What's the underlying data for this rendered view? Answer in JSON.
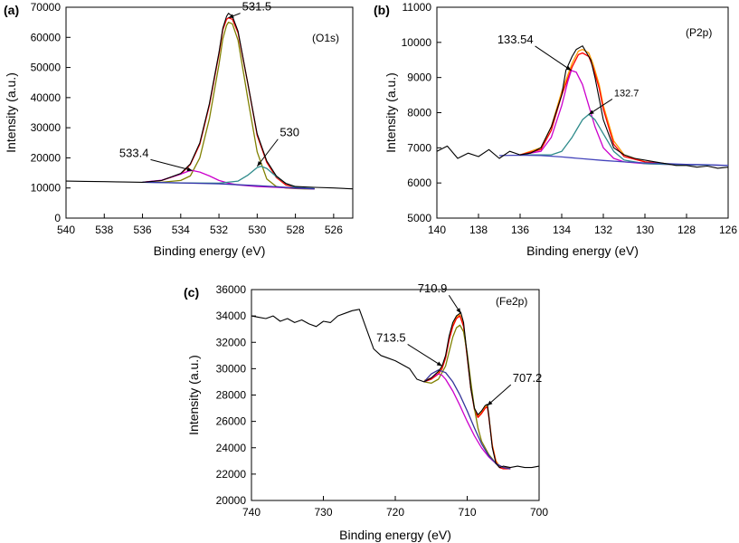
{
  "chart_data": [
    {
      "panel": "(a)",
      "type": "line",
      "tag": "(O1s)",
      "xlabel": "Binding energy (eV)",
      "ylabel": "Intensity (a.u.)",
      "xlim": [
        540,
        525
      ],
      "ylim": [
        0,
        70000
      ],
      "x_ticks": [
        540,
        538,
        536,
        534,
        532,
        530,
        528,
        526
      ],
      "y_ticks": [
        0,
        10000,
        20000,
        30000,
        40000,
        50000,
        60000,
        70000
      ],
      "color_map": {
        "raw": "#000000",
        "fit": "#ff0000",
        "main": "#808000",
        "peak2": "#cc00cc",
        "peak3": "#2e8b8b",
        "background": "#3333aa"
      },
      "series": [
        {
          "key": "raw",
          "x": [
            540,
            539,
            538,
            537,
            536,
            535,
            534,
            533.5,
            533,
            532.5,
            532,
            531.8,
            531.6,
            531.5,
            531.3,
            531,
            530.5,
            530,
            529.5,
            529,
            528.5,
            528,
            527,
            526,
            525
          ],
          "values": [
            12300,
            12200,
            12100,
            12000,
            11900,
            12500,
            14800,
            18000,
            25000,
            38000,
            55000,
            63000,
            67000,
            68000,
            67000,
            62000,
            45000,
            28000,
            19000,
            14000,
            11500,
            10500,
            10200,
            10000,
            9700
          ]
        },
        {
          "key": "fit",
          "x": [
            536,
            535,
            534,
            533.5,
            533,
            532.5,
            532,
            531.8,
            531.6,
            531.5,
            531.3,
            531,
            530.5,
            530,
            529.5,
            529,
            528.5,
            528,
            527.5,
            527
          ],
          "values": [
            11900,
            12500,
            14600,
            17800,
            24500,
            37500,
            54500,
            62500,
            66000,
            66500,
            66000,
            61500,
            45000,
            27500,
            18500,
            13500,
            11000,
            10200,
            9900,
            9700
          ]
        },
        {
          "key": "main",
          "x": [
            536,
            535,
            534,
            533.5,
            533,
            532.5,
            532,
            531.8,
            531.6,
            531.5,
            531.3,
            531,
            530.5,
            530,
            529.5,
            529,
            528.5,
            528,
            527.5,
            527
          ],
          "values": [
            11900,
            11900,
            12500,
            14000,
            20000,
            33000,
            51000,
            59500,
            64000,
            65000,
            64500,
            59000,
            40000,
            22000,
            13000,
            10500,
            10000,
            9800,
            9700,
            9700
          ]
        },
        {
          "key": "peak2",
          "x": [
            536,
            535,
            534,
            533.6,
            533.4,
            533,
            532.5,
            532,
            531.5,
            531,
            530,
            529,
            528,
            527
          ],
          "values": [
            11900,
            12600,
            14600,
            15600,
            15800,
            15300,
            14000,
            12500,
            11600,
            11000,
            10500,
            10200,
            9900,
            9700
          ]
        },
        {
          "key": "peak3",
          "x": [
            536,
            534,
            532,
            531,
            530.5,
            530,
            529.8,
            529.5,
            529,
            528.5,
            528,
            527
          ],
          "values": [
            11900,
            11700,
            11600,
            12300,
            14200,
            16800,
            17200,
            16500,
            13800,
            11500,
            10200,
            9800
          ]
        },
        {
          "key": "background",
          "x": [
            536,
            534,
            532,
            530,
            528,
            527
          ],
          "values": [
            11900,
            11700,
            11400,
            10800,
            10000,
            9700
          ]
        }
      ],
      "annotations": [
        {
          "text": "531.5",
          "x": 531.5,
          "y": 66500
        },
        {
          "text": "533.4",
          "x": 533.4,
          "y": 15800
        },
        {
          "text": "530",
          "x": 530,
          "y": 17200
        }
      ]
    },
    {
      "panel": "(b)",
      "type": "line",
      "tag": "(P2p)",
      "xlabel": "Binding energy (eV)",
      "ylabel": "Intensity (a.u.)",
      "xlim": [
        140,
        126
      ],
      "ylim": [
        5000,
        11000
      ],
      "x_ticks": [
        140,
        138,
        136,
        134,
        132,
        130,
        128,
        126
      ],
      "y_ticks": [
        5000,
        6000,
        7000,
        8000,
        9000,
        10000,
        11000
      ],
      "color_map": {
        "raw": "#000000",
        "fit": "#ff0000",
        "fit2": "#ff9900",
        "peak1": "#cc00cc",
        "peak2": "#2e8b8b",
        "background": "#4444bb"
      },
      "series": [
        {
          "key": "raw",
          "x": [
            140,
            139.5,
            139,
            138.5,
            138,
            137.5,
            137,
            136.5,
            136,
            135.5,
            135,
            134.5,
            134,
            133.8,
            133.5,
            133.3,
            133,
            132.8,
            132.6,
            132.4,
            132.2,
            132,
            131.5,
            131,
            130.5,
            130,
            129.5,
            129,
            128.5,
            128,
            127.5,
            127,
            126.5,
            126
          ],
          "values": [
            6900,
            7050,
            6700,
            6850,
            6750,
            6950,
            6700,
            6900,
            6800,
            6850,
            7000,
            7600,
            8500,
            9200,
            9600,
            9800,
            9900,
            9700,
            9500,
            9000,
            8400,
            7800,
            7000,
            6800,
            6700,
            6650,
            6600,
            6550,
            6500,
            6500,
            6450,
            6480,
            6420,
            6450
          ]
        },
        {
          "key": "fit2",
          "x": [
            136,
            135,
            134.5,
            134,
            133.5,
            133.2,
            133,
            132.7,
            132.5,
            132.2,
            132,
            131.5,
            131,
            130,
            129
          ],
          "values": [
            6800,
            7000,
            7600,
            8600,
            9400,
            9750,
            9800,
            9700,
            9400,
            8800,
            8200,
            7200,
            6800,
            6600,
            6550
          ]
        },
        {
          "key": "fit",
          "x": [
            136,
            135,
            134.5,
            134,
            133.5,
            133.2,
            133,
            132.7,
            132.5,
            132.2,
            132,
            131.5,
            131,
            130,
            129
          ],
          "values": [
            6800,
            6950,
            7500,
            8500,
            9300,
            9650,
            9700,
            9600,
            9300,
            8700,
            8100,
            7100,
            6750,
            6600,
            6550
          ]
        },
        {
          "key": "peak1",
          "x": [
            136,
            135,
            134.5,
            134,
            133.7,
            133.54,
            133.3,
            133,
            132.7,
            132.4,
            132,
            131.5,
            131,
            130,
            129,
            128,
            127,
            126
          ],
          "values": [
            6800,
            6900,
            7300,
            8200,
            8900,
            9200,
            9150,
            8800,
            8200,
            7600,
            7000,
            6700,
            6600,
            6550,
            6530,
            6520,
            6510,
            6500
          ]
        },
        {
          "key": "peak2",
          "x": [
            136,
            134.5,
            134,
            133.5,
            133.2,
            133,
            132.7,
            132.4,
            132,
            131.5,
            131,
            130,
            129,
            128,
            127,
            126
          ],
          "values": [
            6800,
            6800,
            6900,
            7300,
            7600,
            7800,
            7950,
            7800,
            7400,
            6900,
            6650,
            6550,
            6530,
            6520,
            6510,
            6500
          ]
        },
        {
          "key": "background",
          "x": [
            137,
            136,
            135,
            134,
            133,
            132,
            131,
            130,
            129,
            128,
            127,
            126
          ],
          "values": [
            6780,
            6790,
            6780,
            6740,
            6690,
            6640,
            6600,
            6570,
            6550,
            6530,
            6520,
            6500
          ]
        }
      ],
      "annotations": [
        {
          "text": "133.54",
          "x": 133.54,
          "y": 9200
        },
        {
          "text": "132.7",
          "x": 132.7,
          "y": 7950
        }
      ]
    },
    {
      "panel": "(c)",
      "type": "line",
      "tag": "(Fe2p)",
      "xlabel": "Binding energy (eV)",
      "ylabel": "Intensity (a.u.)",
      "xlim": [
        740,
        700
      ],
      "ylim": [
        20000,
        36000
      ],
      "x_ticks": [
        740,
        730,
        720,
        710,
        700
      ],
      "y_ticks": [
        20000,
        22000,
        24000,
        26000,
        28000,
        30000,
        32000,
        34000,
        36000
      ],
      "color_map": {
        "raw": "#000000",
        "fit": "#ff0000",
        "fit2": "#ff9900",
        "main": "#808000",
        "peak2": "#cc00cc",
        "background": "#333399"
      },
      "series": [
        {
          "key": "raw",
          "x": [
            740,
            739,
            738,
            737,
            736,
            735,
            734,
            733,
            732,
            731,
            730,
            729,
            728,
            727,
            726,
            725,
            724,
            723,
            722,
            721,
            720,
            719,
            718,
            717,
            716,
            715,
            714,
            713.5,
            713,
            712.5,
            712,
            711.5,
            711,
            710.9,
            710.5,
            710,
            709.5,
            709,
            708.5,
            708,
            707.5,
            707.2,
            707,
            706.5,
            706,
            705.5,
            705,
            704,
            703,
            702,
            701,
            700
          ],
          "values": [
            34000,
            33900,
            33800,
            34000,
            33600,
            33800,
            33500,
            33700,
            33400,
            33200,
            33600,
            33500,
            34000,
            34200,
            34400,
            34500,
            33000,
            31500,
            31000,
            30800,
            30600,
            30300,
            30000,
            29200,
            29000,
            29300,
            29800,
            30200,
            31000,
            32500,
            33500,
            34000,
            34200,
            34300,
            33500,
            31000,
            28500,
            27000,
            26500,
            26800,
            27200,
            27300,
            26500,
            24000,
            22800,
            22500,
            22600,
            22500,
            22600,
            22500,
            22500,
            22600
          ]
        },
        {
          "key": "fit2",
          "x": [
            716,
            715,
            714,
            713.5,
            713,
            712.5,
            712,
            711.5,
            711,
            710.5,
            710,
            709.5,
            709,
            708.5,
            708,
            707.5,
            707.2,
            707,
            706.5,
            706,
            705.5,
            705,
            704
          ],
          "values": [
            29100,
            29300,
            29700,
            30100,
            30900,
            32300,
            33300,
            33900,
            34100,
            33300,
            31000,
            28600,
            27000,
            26400,
            26700,
            27100,
            27200,
            26500,
            24200,
            23000,
            22600,
            22500,
            22500
          ]
        },
        {
          "key": "fit",
          "x": [
            716,
            715,
            714,
            713.5,
            713,
            712.5,
            712,
            711.5,
            711,
            710.5,
            710,
            709.5,
            709,
            708.5,
            708,
            707.5,
            707.2,
            707,
            706.5,
            706,
            705.5,
            705,
            704
          ],
          "values": [
            29000,
            29200,
            29600,
            30000,
            30800,
            32200,
            33200,
            33800,
            34000,
            33200,
            30900,
            28500,
            26900,
            26300,
            26600,
            27000,
            27100,
            26400,
            24100,
            22900,
            22500,
            22400,
            22400
          ]
        },
        {
          "key": "main",
          "x": [
            716,
            715,
            714,
            713,
            712.5,
            712,
            711.5,
            711,
            710.5,
            710,
            709.5,
            709,
            708.5,
            708,
            707,
            706,
            705,
            704
          ],
          "values": [
            29000,
            28900,
            29200,
            30200,
            31300,
            32400,
            33100,
            33300,
            32800,
            31200,
            29000,
            27000,
            25500,
            24500,
            23500,
            22800,
            22500,
            22400
          ]
        },
        {
          "key": "peak2",
          "x": [
            716,
            715,
            714.5,
            714,
            713.5,
            713,
            712,
            711,
            710,
            709,
            708,
            707,
            706,
            705,
            704
          ],
          "values": [
            29000,
            29300,
            29500,
            29600,
            29500,
            29200,
            28300,
            27200,
            26000,
            24900,
            24000,
            23300,
            22800,
            22500,
            22400
          ]
        },
        {
          "key": "background",
          "x": [
            716,
            715,
            714,
            713,
            712,
            711,
            710,
            709,
            708,
            707,
            706,
            705,
            704
          ],
          "values": [
            29000,
            29600,
            29900,
            29700,
            29000,
            28000,
            26800,
            25500,
            24300,
            23400,
            22800,
            22500,
            22400
          ]
        }
      ],
      "annotations": [
        {
          "text": "710.9",
          "x": 710.9,
          "y": 34200
        },
        {
          "text": "713.5",
          "x": 713.5,
          "y": 30200
        },
        {
          "text": "707.2",
          "x": 707.2,
          "y": 27200
        }
      ]
    }
  ]
}
